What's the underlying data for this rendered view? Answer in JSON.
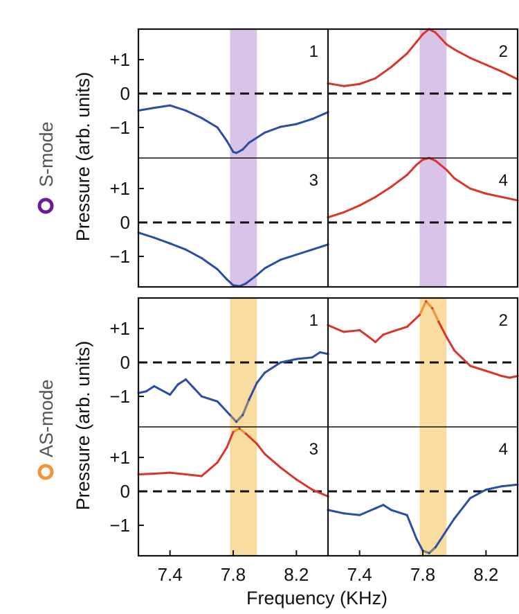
{
  "figure": {
    "xlabel": "Frequency (KHz)",
    "ylabel": "Pressure (arb. units)",
    "groups": [
      {
        "mode_label": "S-mode",
        "marker_color": "#6a1b9a",
        "band_color": "#d9c3e8"
      },
      {
        "mode_label": "AS-mode",
        "marker_color": "#f0953a",
        "band_color": "#f9dca0"
      }
    ],
    "x_tick_labels": [
      "7.4",
      "7.8",
      "8.2"
    ],
    "y_tick_labels": [
      "+1",
      "0",
      "−1"
    ]
  },
  "chart_data": [
    {
      "type": "line",
      "group": "S-mode",
      "panel": "1",
      "xlim": [
        7.2,
        8.4
      ],
      "ylim": [
        -1.9,
        1.9
      ],
      "band": [
        7.78,
        7.95
      ],
      "zero_line": "dashed",
      "color": "#2a4ea6",
      "x": [
        7.2,
        7.3,
        7.4,
        7.5,
        7.6,
        7.7,
        7.76,
        7.8,
        7.82,
        7.86,
        7.9,
        8.0,
        8.1,
        8.2,
        8.3,
        8.4
      ],
      "y": [
        -0.5,
        -0.42,
        -0.35,
        -0.5,
        -0.72,
        -1.0,
        -1.4,
        -1.72,
        -1.75,
        -1.65,
        -1.45,
        -1.15,
        -0.98,
        -0.9,
        -0.75,
        -0.55
      ]
    },
    {
      "type": "line",
      "group": "S-mode",
      "panel": "2",
      "xlim": [
        7.2,
        8.4
      ],
      "ylim": [
        -1.9,
        1.9
      ],
      "band": [
        7.78,
        7.95
      ],
      "zero_line": "dashed",
      "color": "#d9352a",
      "x": [
        7.2,
        7.3,
        7.4,
        7.5,
        7.6,
        7.7,
        7.76,
        7.8,
        7.84,
        7.88,
        7.95,
        8.0,
        8.1,
        8.2,
        8.3,
        8.4
      ],
      "y": [
        0.3,
        0.22,
        0.28,
        0.45,
        0.78,
        1.18,
        1.52,
        1.75,
        1.9,
        1.8,
        1.45,
        1.3,
        1.05,
        0.85,
        0.65,
        0.42
      ]
    },
    {
      "type": "line",
      "group": "S-mode",
      "panel": "3",
      "xlim": [
        7.2,
        8.4
      ],
      "ylim": [
        -1.9,
        1.9
      ],
      "band": [
        7.78,
        7.95
      ],
      "zero_line": "dashed",
      "color": "#2a4ea6",
      "x": [
        7.2,
        7.3,
        7.4,
        7.5,
        7.6,
        7.7,
        7.76,
        7.8,
        7.84,
        7.88,
        7.95,
        8.0,
        8.1,
        8.2,
        8.3,
        8.4
      ],
      "y": [
        -0.3,
        -0.45,
        -0.62,
        -0.8,
        -1.05,
        -1.38,
        -1.68,
        -1.85,
        -1.88,
        -1.8,
        -1.55,
        -1.35,
        -1.1,
        -0.95,
        -0.8,
        -0.65
      ]
    },
    {
      "type": "line",
      "group": "S-mode",
      "panel": "4",
      "xlim": [
        7.2,
        8.4
      ],
      "ylim": [
        -1.9,
        1.9
      ],
      "band": [
        7.78,
        7.95
      ],
      "zero_line": "dashed",
      "color": "#d9352a",
      "x": [
        7.2,
        7.3,
        7.4,
        7.5,
        7.6,
        7.7,
        7.76,
        7.8,
        7.84,
        7.88,
        7.95,
        8.0,
        8.1,
        8.2,
        8.3,
        8.4
      ],
      "y": [
        0.15,
        0.3,
        0.5,
        0.75,
        1.05,
        1.4,
        1.7,
        1.85,
        1.9,
        1.82,
        1.55,
        1.3,
        1.0,
        0.85,
        0.75,
        0.65
      ]
    },
    {
      "type": "line",
      "group": "AS-mode",
      "panel": "1",
      "xlim": [
        7.2,
        8.4
      ],
      "ylim": [
        -1.9,
        1.9
      ],
      "band": [
        7.78,
        7.95
      ],
      "zero_line": "dashed",
      "color": "#2a4ea6",
      "highlight_color": "#808080",
      "x": [
        7.2,
        7.25,
        7.3,
        7.4,
        7.45,
        7.5,
        7.55,
        7.6,
        7.7,
        7.78,
        7.82,
        7.86,
        7.9,
        7.95,
        8.0,
        8.1,
        8.2,
        8.3,
        8.35,
        8.4
      ],
      "y": [
        -0.9,
        -0.85,
        -0.7,
        -0.95,
        -0.65,
        -0.5,
        -0.75,
        -1.0,
        -1.15,
        -1.55,
        -1.75,
        -1.55,
        -1.1,
        -0.6,
        -0.3,
        0.0,
        0.1,
        0.15,
        0.3,
        0.25
      ]
    },
    {
      "type": "line",
      "group": "AS-mode",
      "panel": "2",
      "xlim": [
        7.2,
        8.4
      ],
      "ylim": [
        -1.9,
        1.9
      ],
      "band": [
        7.78,
        7.95
      ],
      "zero_line": "dashed",
      "color": "#d9352a",
      "highlight_color": "#f0953a",
      "x": [
        7.2,
        7.25,
        7.3,
        7.4,
        7.45,
        7.5,
        7.55,
        7.6,
        7.7,
        7.78,
        7.82,
        7.86,
        7.9,
        7.95,
        8.0,
        8.1,
        8.2,
        8.3,
        8.35,
        8.4
      ],
      "y": [
        1.1,
        1.0,
        0.9,
        0.95,
        0.78,
        0.6,
        0.82,
        0.9,
        1.05,
        1.4,
        1.8,
        1.6,
        1.2,
        0.75,
        0.35,
        -0.1,
        -0.25,
        -0.4,
        -0.45,
        -0.4
      ]
    },
    {
      "type": "line",
      "group": "AS-mode",
      "panel": "3",
      "xlim": [
        7.2,
        8.4
      ],
      "ylim": [
        -1.9,
        1.9
      ],
      "band": [
        7.78,
        7.95
      ],
      "zero_line": "dashed",
      "color": "#d9352a",
      "highlight_color": "#f0953a",
      "x": [
        7.2,
        7.3,
        7.4,
        7.5,
        7.6,
        7.7,
        7.76,
        7.8,
        7.84,
        7.88,
        7.95,
        8.0,
        8.1,
        8.2,
        8.3,
        8.4
      ],
      "y": [
        0.5,
        0.52,
        0.55,
        0.5,
        0.45,
        0.85,
        1.3,
        1.75,
        1.85,
        1.7,
        1.4,
        1.1,
        0.7,
        0.35,
        0.05,
        -0.15
      ]
    },
    {
      "type": "line",
      "group": "AS-mode",
      "panel": "4",
      "xlim": [
        7.2,
        8.4
      ],
      "ylim": [
        -1.9,
        1.9
      ],
      "band": [
        7.78,
        7.95
      ],
      "zero_line": "dashed",
      "color": "#2a4ea6",
      "highlight_color": "#808080",
      "x": [
        7.2,
        7.3,
        7.4,
        7.5,
        7.55,
        7.6,
        7.7,
        7.76,
        7.8,
        7.84,
        7.88,
        7.95,
        8.0,
        8.1,
        8.2,
        8.3,
        8.4
      ],
      "y": [
        -0.55,
        -0.65,
        -0.7,
        -0.5,
        -0.4,
        -0.55,
        -0.7,
        -1.4,
        -1.75,
        -1.82,
        -1.65,
        -1.15,
        -0.8,
        -0.2,
        0.05,
        0.15,
        0.2
      ]
    }
  ]
}
